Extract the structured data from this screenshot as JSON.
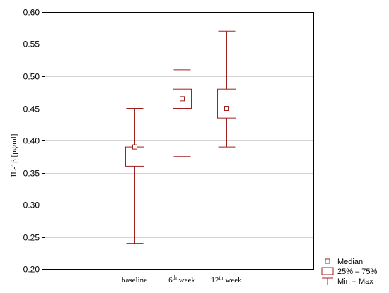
{
  "chart_data": {
    "type": "box",
    "ylabel": "IL-1β [pg/ml]",
    "ylim": [
      0.2,
      0.6
    ],
    "yticks": [
      "0.20",
      "0.25",
      "0.30",
      "0.35",
      "0.40",
      "0.45",
      "0.50",
      "0.55",
      "0.60"
    ],
    "grid": "horizontal",
    "legend_position": "bottom-right",
    "categories": [
      {
        "label": "baseline",
        "sup": "",
        "suffix": ""
      },
      {
        "label": "6",
        "sup": "th",
        "suffix": " week"
      },
      {
        "label": "12",
        "sup": "th",
        "suffix": " week"
      }
    ],
    "series": [
      {
        "median": 0.39,
        "q1": 0.36,
        "q3": 0.39,
        "min": 0.24,
        "max": 0.45
      },
      {
        "median": 0.465,
        "q1": 0.45,
        "q3": 0.48,
        "min": 0.375,
        "max": 0.51
      },
      {
        "median": 0.45,
        "q1": 0.435,
        "q3": 0.48,
        "min": 0.39,
        "max": 0.57
      }
    ],
    "legend": [
      {
        "symbol": "median",
        "label": "Median"
      },
      {
        "symbol": "box",
        "label": "25% – 75%"
      },
      {
        "symbol": "whisker",
        "label": "Min – Max"
      }
    ],
    "colors": {
      "series": "#a02020",
      "grid": "#d4d4d4",
      "axis": "#000000"
    }
  }
}
